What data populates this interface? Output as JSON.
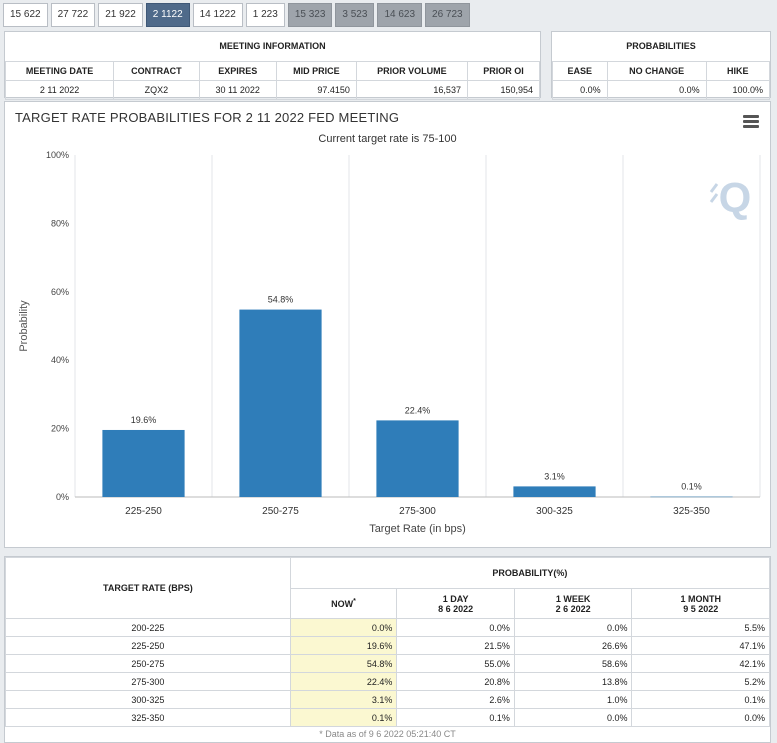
{
  "tabs": [
    {
      "label": "15 622",
      "state": "normal"
    },
    {
      "label": "27 722",
      "state": "normal"
    },
    {
      "label": "21 922",
      "state": "normal"
    },
    {
      "label": "2 1122",
      "state": "active"
    },
    {
      "label": "14 1222",
      "state": "normal"
    },
    {
      "label": "1 223",
      "state": "normal"
    },
    {
      "label": "15 323",
      "state": "disabled"
    },
    {
      "label": "3 523",
      "state": "disabled"
    },
    {
      "label": "14 623",
      "state": "disabled"
    },
    {
      "label": "26 723",
      "state": "disabled"
    }
  ],
  "meeting_info": {
    "title": "MEETING INFORMATION",
    "headers": [
      "MEETING DATE",
      "CONTRACT",
      "EXPIRES",
      "MID PRICE",
      "PRIOR VOLUME",
      "PRIOR OI"
    ],
    "values": [
      "2 11 2022",
      "ZQX2",
      "30 11 2022",
      "97.4150",
      "16,537",
      "150,954"
    ]
  },
  "probabilities": {
    "title": "PROBABILITIES",
    "headers": [
      "EASE",
      "NO CHANGE",
      "HIKE"
    ],
    "values": [
      "0.0%",
      "0.0%",
      "100.0%"
    ]
  },
  "chart_title": "TARGET RATE PROBABILITIES FOR 2 11 2022 FED MEETING",
  "chart_data": {
    "type": "bar",
    "title": "TARGET RATE PROBABILITIES FOR 2 11 2022 FED MEETING",
    "subtitle": "Current target rate is 75-100",
    "categories": [
      "225-250",
      "250-275",
      "275-300",
      "300-325",
      "325-350"
    ],
    "values": [
      19.6,
      54.8,
      22.4,
      3.1,
      0.1
    ],
    "labels": [
      "19.6%",
      "54.8%",
      "22.4%",
      "3.1%",
      "0.1%"
    ],
    "xlabel": "Target Rate (in bps)",
    "ylabel": "Probability",
    "ylim": [
      0,
      100
    ],
    "yticks": [
      0,
      20,
      40,
      60,
      80,
      100
    ],
    "ytick_labels": [
      "0%",
      "20%",
      "40%",
      "60%",
      "80%",
      "100%"
    ],
    "bar_color": "#2f7db9",
    "grid": true
  },
  "prob_table": {
    "col_rate": "TARGET RATE (BPS)",
    "group": "PROBABILITY(%)",
    "now_label": "NOW",
    "now_mark": "*",
    "cols": [
      {
        "line1": "1 DAY",
        "line2": "8 6 2022"
      },
      {
        "line1": "1 WEEK",
        "line2": "2 6 2022"
      },
      {
        "line1": "1 MONTH",
        "line2": "9 5 2022"
      }
    ],
    "rows": [
      {
        "rate": "200-225",
        "now": "0.0%",
        "day": "0.0%",
        "week": "0.0%",
        "month": "5.5%"
      },
      {
        "rate": "225-250",
        "now": "19.6%",
        "day": "21.5%",
        "week": "26.6%",
        "month": "47.1%"
      },
      {
        "rate": "250-275",
        "now": "54.8%",
        "day": "55.0%",
        "week": "58.6%",
        "month": "42.1%"
      },
      {
        "rate": "275-300",
        "now": "22.4%",
        "day": "20.8%",
        "week": "13.8%",
        "month": "5.2%"
      },
      {
        "rate": "300-325",
        "now": "3.1%",
        "day": "2.6%",
        "week": "1.0%",
        "month": "0.1%"
      },
      {
        "rate": "325-350",
        "now": "0.1%",
        "day": "0.1%",
        "week": "0.0%",
        "month": "0.0%"
      }
    ],
    "footnote": "* Data as of 9 6 2022 05:21:40 CT"
  },
  "icons": {
    "menu": "hamburger-menu-icon",
    "watermark": "q-logo-icon"
  }
}
